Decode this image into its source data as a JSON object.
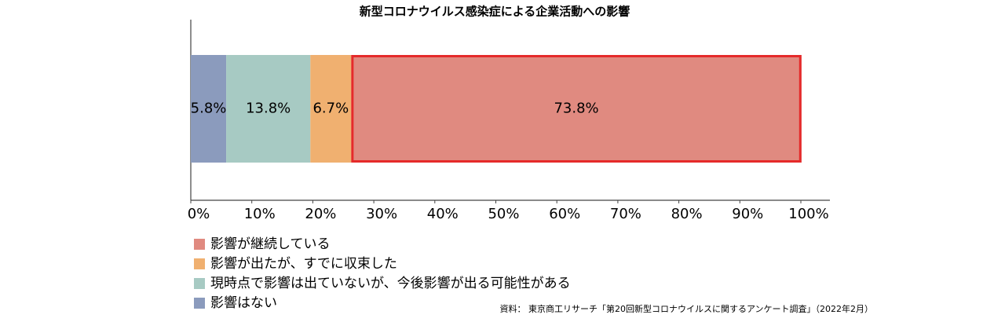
{
  "chart_data": {
    "type": "bar",
    "horizontal": true,
    "stacked": true,
    "title": "新型コロナウイルス感染症による企業活動への影響",
    "categories": [
      null
    ],
    "series": [
      {
        "name": "影響はない",
        "color": "#8b9bbd",
        "values": [
          5.8
        ],
        "value_labels": [
          "5.8%"
        ]
      },
      {
        "name": "現時点で影響は出ていないが、今後影響が出る可能性がある",
        "color": "#a7cac3",
        "values": [
          13.8
        ],
        "value_labels": [
          "13.8%"
        ]
      },
      {
        "name": "影響が出たが、すでに収束した",
        "color": "#f0b070",
        "values": [
          6.7
        ],
        "value_labels": [
          "6.7%"
        ]
      },
      {
        "name": "影響が継続している",
        "color": "#e08a80",
        "values": [
          73.8
        ],
        "value_labels": [
          "73.8%"
        ],
        "border_color": "#e52a2a"
      }
    ],
    "xlim": [
      0,
      100
    ],
    "xticks": [
      {
        "value": 0,
        "label": "0%"
      },
      {
        "value": 10,
        "label": "10%"
      },
      {
        "value": 20,
        "label": "20%"
      },
      {
        "value": 30,
        "label": "30%"
      },
      {
        "value": 40,
        "label": "40%"
      },
      {
        "value": 50,
        "label": "50%"
      },
      {
        "value": 60,
        "label": "60%"
      },
      {
        "value": 70,
        "label": "70%"
      },
      {
        "value": 80,
        "label": "80%"
      },
      {
        "value": 90,
        "label": "90%"
      },
      {
        "value": 100,
        "label": "100%"
      }
    ],
    "source": "資料： 東京商工リサーチ「第20回新型コロナウイルスに関するアンケート調査」（2022年2月）"
  }
}
